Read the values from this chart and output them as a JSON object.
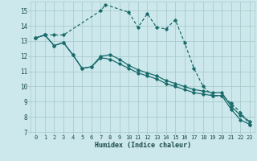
{
  "xlabel": "Humidex (Indice chaleur)",
  "bg_color": "#cce8ec",
  "grid_color": "#aacccc",
  "line_color": "#1a6b6b",
  "xlim": [
    -0.5,
    23.5
  ],
  "ylim": [
    7,
    15.6
  ],
  "yticks": [
    7,
    8,
    9,
    10,
    11,
    12,
    13,
    14,
    15
  ],
  "xticks": [
    0,
    1,
    2,
    3,
    4,
    5,
    6,
    7,
    8,
    9,
    10,
    11,
    12,
    13,
    14,
    15,
    16,
    17,
    18,
    19,
    20,
    21,
    22,
    23
  ],
  "line1_x": [
    0,
    1,
    2,
    3,
    4,
    5,
    6,
    7,
    8,
    9,
    10,
    11,
    12,
    13,
    14,
    15,
    16,
    17,
    18,
    19,
    20,
    21,
    22,
    23
  ],
  "line1_y": [
    13.2,
    13.4,
    12.7,
    12.9,
    12.1,
    11.2,
    11.3,
    11.9,
    11.8,
    11.5,
    11.2,
    10.9,
    10.7,
    10.5,
    10.2,
    10.0,
    9.8,
    9.6,
    9.5,
    9.4,
    9.4,
    8.5,
    7.8,
    7.5
  ],
  "line2_x": [
    0,
    1,
    2,
    3,
    7,
    7.5,
    10,
    11,
    12,
    13,
    14,
    15,
    16,
    17,
    18,
    19,
    20,
    21,
    22,
    23
  ],
  "line2_y": [
    13.2,
    13.4,
    13.4,
    13.4,
    15.0,
    15.4,
    14.9,
    13.9,
    14.8,
    13.9,
    13.8,
    14.4,
    12.9,
    11.2,
    10.0,
    9.4,
    9.4,
    8.9,
    8.3,
    7.5
  ],
  "line3_x": [
    0,
    1,
    2,
    3,
    4,
    5,
    6,
    7,
    8,
    9,
    10,
    11,
    12,
    13,
    14,
    15,
    16,
    17,
    18,
    19,
    20,
    21,
    22,
    23
  ],
  "line3_y": [
    13.2,
    13.4,
    12.7,
    12.9,
    12.1,
    11.2,
    11.3,
    12.0,
    12.1,
    11.8,
    11.4,
    11.1,
    10.9,
    10.7,
    10.4,
    10.2,
    10.0,
    9.8,
    9.7,
    9.6,
    9.6,
    8.7,
    8.1,
    7.7
  ]
}
